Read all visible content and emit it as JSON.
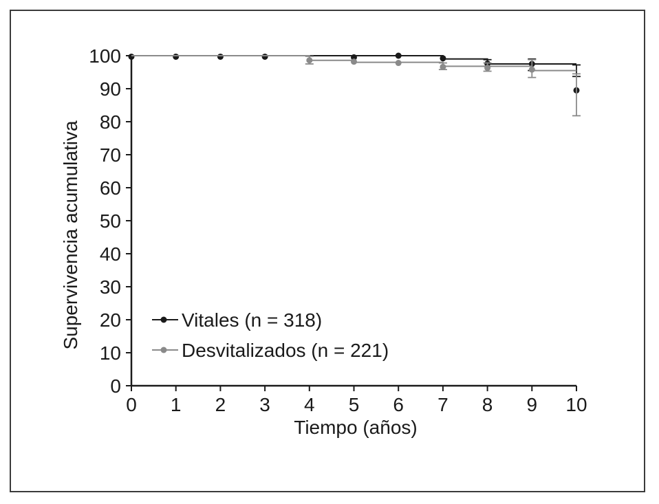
{
  "chart_data": {
    "type": "line",
    "title": "",
    "xlabel": "Tiempo (años)",
    "ylabel": "Supervivencia acumulativa",
    "xlim": [
      0,
      10
    ],
    "ylim": [
      0,
      100
    ],
    "x_ticks": [
      "0",
      "1",
      "2",
      "3",
      "4",
      "5",
      "6",
      "7",
      "8",
      "9",
      "10"
    ],
    "y_ticks": [
      "0",
      "10",
      "20",
      "30",
      "40",
      "50",
      "60",
      "70",
      "80",
      "90",
      "100"
    ],
    "grid": false,
    "legend_position": "bottom-left",
    "curve_style": "step",
    "series": [
      {
        "name": "Vitales (n = 318)",
        "color": "#1a1a1a",
        "points": [
          {
            "x": 0,
            "y": 99.7
          },
          {
            "x": 1,
            "y": 99.7
          },
          {
            "x": 2,
            "y": 99.7
          },
          {
            "x": 3,
            "y": 99.7
          },
          {
            "x": 5,
            "y": 99.5
          },
          {
            "x": 6,
            "y": 100
          },
          {
            "x": 7,
            "y": 99.2
          },
          {
            "x": 8,
            "y": 97.6
          },
          {
            "x": 9,
            "y": 97.5
          },
          {
            "x": 10,
            "y": 89.5
          }
        ],
        "step_y": [
          100,
          100,
          100,
          100,
          100,
          100,
          100,
          99.0,
          97.5,
          97.5,
          97.5
        ],
        "error_bars": [
          {
            "x": 8,
            "low": 96.8,
            "high": 98.8
          },
          {
            "x": 9,
            "low": 95.5,
            "high": 99.0
          },
          {
            "x": 10,
            "low": 93.7,
            "high": 97.2
          }
        ]
      },
      {
        "name": "Desvitalizados (n = 221)",
        "color": "#8a8a8a",
        "points": [
          {
            "x": 4,
            "y": 98.6
          },
          {
            "x": 5,
            "y": 98.2
          },
          {
            "x": 6,
            "y": 97.8
          },
          {
            "x": 7,
            "y": 96.6
          },
          {
            "x": 8,
            "y": 96.3
          },
          {
            "x": 9,
            "y": 95.8
          }
        ],
        "step_y": [
          100,
          100,
          100,
          100,
          98.6,
          98.0,
          98.0,
          96.8,
          96.8,
          95.5,
          95.5
        ],
        "error_bars": [
          {
            "x": 4,
            "low": 97.5,
            "high": 99.8
          },
          {
            "x": 7,
            "low": 95.8,
            "high": 97.8
          },
          {
            "x": 8,
            "low": 95.3,
            "high": 97.8
          },
          {
            "x": 9,
            "low": 93.4,
            "high": 98.8
          },
          {
            "x": 10,
            "low": 81.8,
            "high": 94.5
          }
        ]
      }
    ]
  }
}
